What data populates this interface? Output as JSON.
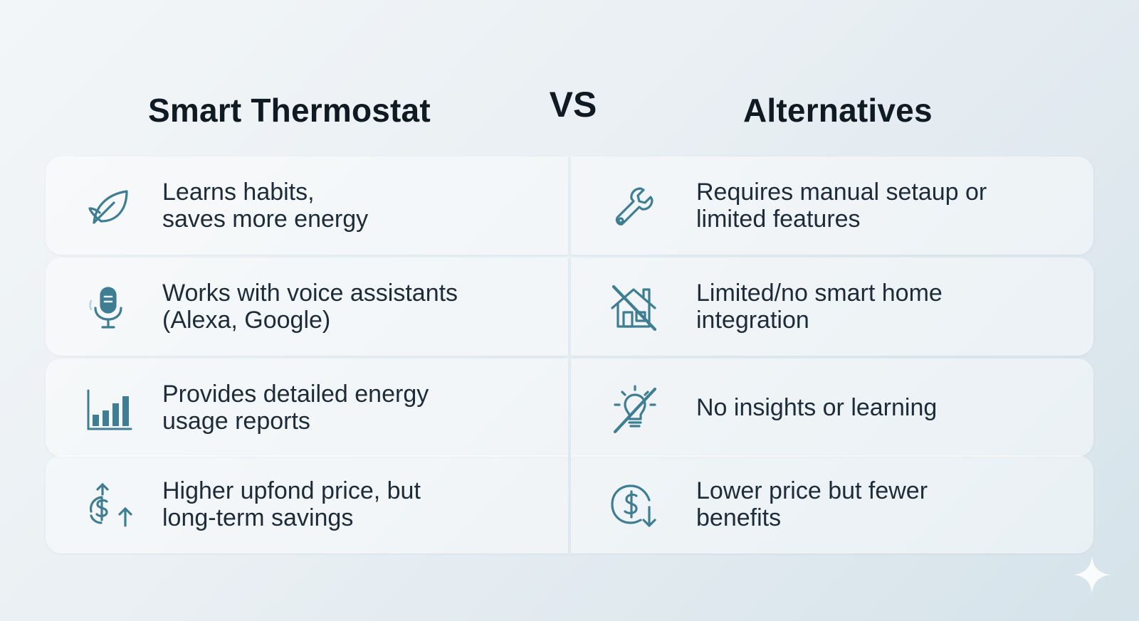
{
  "header": {
    "left_title": "Smart Thermostat",
    "vs_label": "VS",
    "right_title": "Alternatives"
  },
  "colors": {
    "icon": "#3f7d93",
    "title": "#0f1a22",
    "text": "#1d2c38"
  },
  "rows": [
    {
      "left": {
        "icon": "leaf-icon",
        "line1": "Learns habits,",
        "line2": "saves more energy"
      },
      "right": {
        "icon": "wrench-icon",
        "line1": "Requires manual setaup or",
        "line2": "limited features"
      }
    },
    {
      "left": {
        "icon": "microphone-icon",
        "line1": "Works with voice assistants",
        "line2": "(Alexa, Google)"
      },
      "right": {
        "icon": "no-smart-home-icon",
        "line1": "Limited/no smart home",
        "line2": "integration"
      }
    },
    {
      "left": {
        "icon": "bar-chart-icon",
        "line1": "Provides detailed energy",
        "line2": "usage reports"
      },
      "right": {
        "icon": "no-lightbulb-icon",
        "line1": "No insights or learning",
        "line2": ""
      }
    },
    {
      "left": {
        "icon": "price-up-icon",
        "line1": "Higher upfond price, but",
        "line2": "long-term savings"
      },
      "right": {
        "icon": "price-down-icon",
        "line1": "Lower price but fewer",
        "line2": "benefits"
      }
    }
  ]
}
